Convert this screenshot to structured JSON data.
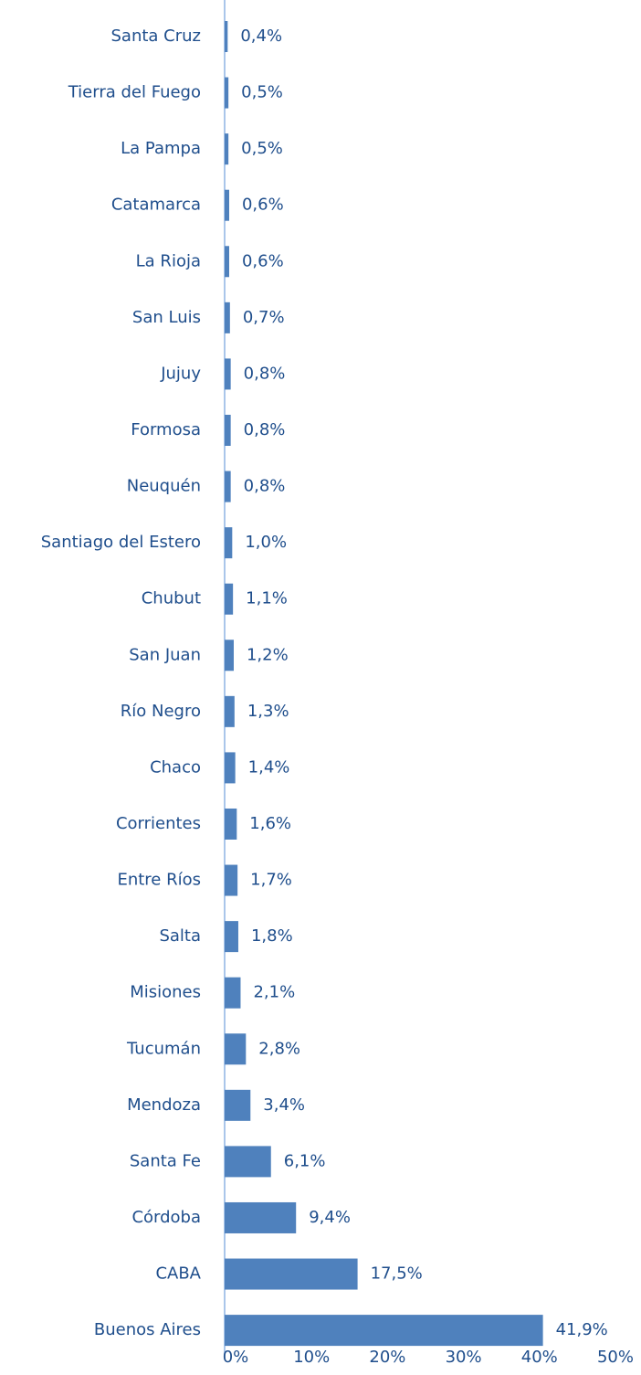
{
  "chart_data": {
    "type": "barh",
    "categories": [
      "Santa Cruz",
      "Tierra del Fuego",
      "La Pampa",
      "Catamarca",
      "La Rioja",
      "San Luis",
      "Jujuy",
      "Formosa",
      "Neuquén",
      "Santiago del Estero",
      "Chubut",
      "San Juan",
      "Río Negro",
      "Chaco",
      "Corrientes",
      "Entre Ríos",
      "Salta",
      "Misiones",
      "Tucumán",
      "Mendoza",
      "Santa Fe",
      "Córdoba",
      "CABA",
      "Buenos Aires"
    ],
    "values": [
      0.4,
      0.5,
      0.5,
      0.6,
      0.6,
      0.7,
      0.8,
      0.8,
      0.8,
      1.0,
      1.1,
      1.2,
      1.3,
      1.4,
      1.6,
      1.7,
      1.8,
      2.1,
      2.8,
      3.4,
      6.1,
      9.4,
      17.5,
      41.9
    ],
    "value_labels": [
      "0,4%",
      "0,5%",
      "0,5%",
      "0,6%",
      "0,6%",
      "0,7%",
      "0,8%",
      "0,8%",
      "0,8%",
      "1,0%",
      "1,1%",
      "1,2%",
      "1,3%",
      "1,4%",
      "1,6%",
      "1,7%",
      "1,8%",
      "2,1%",
      "2,8%",
      "3,4%",
      "6,1%",
      "9,4%",
      "17,5%",
      "41,9%"
    ],
    "color": "#4f81bd",
    "xlim": [
      0,
      50
    ],
    "xticks": [
      {
        "value": 0,
        "label": "0%"
      },
      {
        "value": 10,
        "label": "10%"
      },
      {
        "value": 20,
        "label": "20%"
      },
      {
        "value": 30,
        "label": "30%"
      },
      {
        "value": 40,
        "label": "40%"
      },
      {
        "value": 50,
        "label": "50%"
      }
    ]
  }
}
